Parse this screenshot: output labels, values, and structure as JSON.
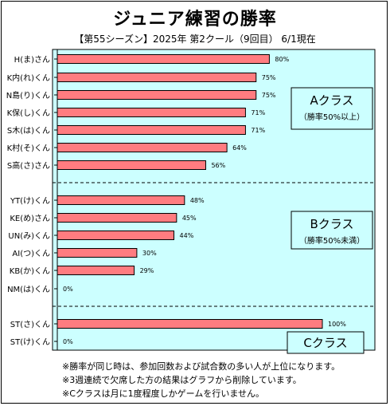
{
  "title": "ジュニア練習の勝率",
  "subtitle": "【第55シーズン】2025年 第2クール（9回目） 6/1現在",
  "colors": {
    "plot_bg": "#ccffff",
    "bar": "#ff7c80",
    "bar_stroke": "#000000"
  },
  "chart_data": {
    "type": "bar",
    "orientation": "horizontal",
    "categories": [
      "H(ま)さん",
      "K内(れ)くん",
      "N島(り)くん",
      "K保(し)くん",
      "S木(は)くん",
      "K村(そ)くん",
      "S高(さ)さん",
      "YT(け)くん",
      "KE(め)さん",
      "UN(み)くん",
      "AI(つ)くん",
      "KB(か)くん",
      "NM(は)くん",
      "ST(さ)くん",
      "ST(け)くん"
    ],
    "values": [
      80,
      75,
      75,
      71,
      71,
      64,
      56,
      48,
      45,
      44,
      30,
      29,
      0,
      100,
      0
    ],
    "value_labels": [
      "80%",
      "75%",
      "75%",
      "71%",
      "71%",
      "64%",
      "56%",
      "48%",
      "45%",
      "44%",
      "30%",
      "29%",
      "0%",
      "100%",
      "0%"
    ],
    "groups": [
      {
        "name": "Aクラス",
        "note": "（勝率50%以上）",
        "members": [
          0,
          1,
          2,
          3,
          4,
          5,
          6
        ]
      },
      {
        "name": "Bクラス",
        "note": "（勝率50%未満）",
        "members": [
          7,
          8,
          9,
          10,
          11,
          12
        ]
      },
      {
        "name": "Cクラス",
        "note": "",
        "members": [
          13,
          14
        ]
      }
    ],
    "xlim": [
      0,
      100
    ],
    "grid": false,
    "legend": "none"
  },
  "notes": [
    "※勝率が同じ時は、参加回数および試合数の多い人が上位になります。",
    "※3週連続で欠席した方の結果はグラフから削除しています。",
    "※Cクラスは月に1度程度しかゲームを行いません。"
  ]
}
